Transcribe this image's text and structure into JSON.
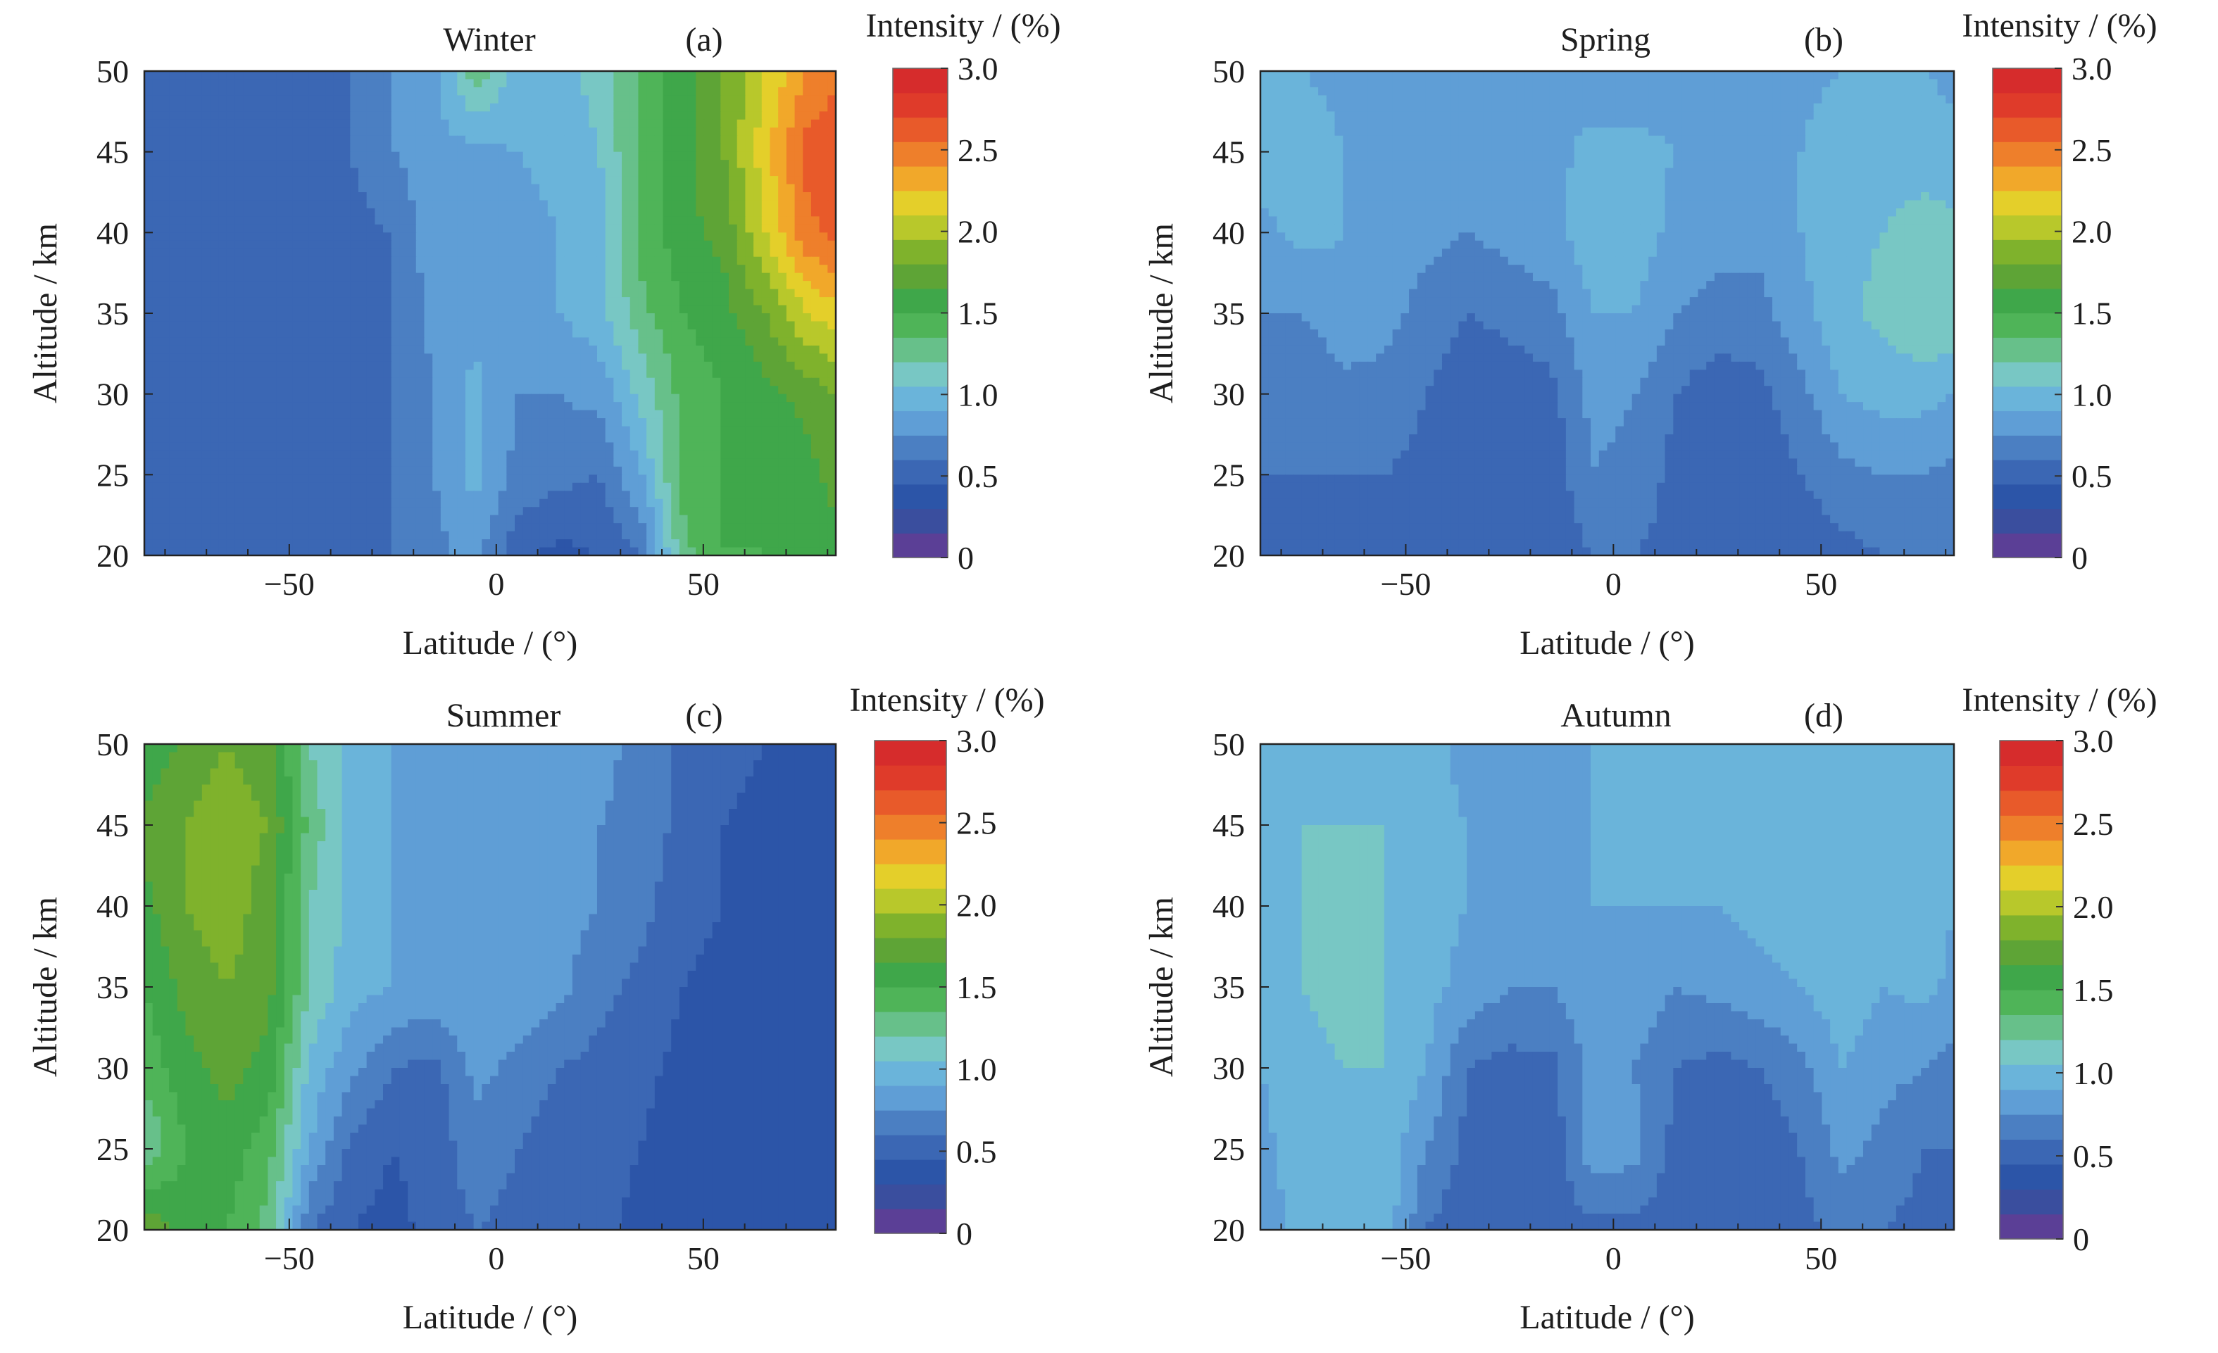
{
  "figure": {
    "panels": [
      {
        "season_title": "Winter",
        "panel_label": "(a)"
      },
      {
        "season_title": "Spring",
        "panel_label": "(b)"
      },
      {
        "season_title": "Summer",
        "panel_label": "(c)"
      },
      {
        "season_title": "Autumn",
        "panel_label": "(d)"
      }
    ],
    "x_axis_label": "Latitude / (°)",
    "y_axis_label": "Altitude / km",
    "colorbar_label": "Intensity / (%)",
    "x_tick_labels": [
      "−50",
      "0",
      "50"
    ],
    "y_tick_labels": [
      "20",
      "25",
      "30",
      "35",
      "40",
      "45",
      "50"
    ],
    "colorbar_tick_labels": [
      "0",
      "0.5",
      "1.0",
      "1.5",
      "2.0",
      "2.5",
      "3.0"
    ]
  },
  "chart_data": [
    {
      "type": "heatmap",
      "title": "Winter",
      "panel": "(a)",
      "xlabel": "Latitude / (°)",
      "ylabel": "Altitude / km",
      "colorbar_label": "Intensity / (%)",
      "xlim": [
        -85,
        82
      ],
      "ylim": [
        20,
        50
      ],
      "zlim": [
        0,
        3.0
      ],
      "x_ticks": [
        -50,
        0,
        50
      ],
      "y_ticks": [
        20,
        25,
        30,
        35,
        40,
        45,
        50
      ],
      "colorbar_ticks": [
        0,
        0.5,
        1.0,
        1.5,
        2.0,
        2.5,
        3.0
      ],
      "x": [
        -85,
        -75,
        -65,
        -55,
        -45,
        -35,
        -25,
        -15,
        -5,
        5,
        15,
        25,
        35,
        45,
        55,
        65,
        75,
        82
      ],
      "y": [
        20,
        25,
        30,
        35,
        40,
        45,
        50
      ],
      "z": [
        [
          0.55,
          0.55,
          0.55,
          0.55,
          0.55,
          0.55,
          0.6,
          0.7,
          0.8,
          0.5,
          0.4,
          0.45,
          0.6,
          1.3,
          1.5,
          1.5,
          1.6,
          1.6
        ],
        [
          0.55,
          0.55,
          0.55,
          0.55,
          0.55,
          0.55,
          0.6,
          0.75,
          0.95,
          0.7,
          0.65,
          0.6,
          0.9,
          1.4,
          1.5,
          1.5,
          1.6,
          1.7
        ],
        [
          0.55,
          0.55,
          0.55,
          0.55,
          0.55,
          0.55,
          0.6,
          0.75,
          0.95,
          0.75,
          0.75,
          0.8,
          1.1,
          1.4,
          1.5,
          1.6,
          1.7,
          1.8
        ],
        [
          0.55,
          0.55,
          0.55,
          0.55,
          0.55,
          0.55,
          0.6,
          0.8,
          0.85,
          0.8,
          0.9,
          1.0,
          1.3,
          1.5,
          1.6,
          1.8,
          2.1,
          2.2
        ],
        [
          0.55,
          0.55,
          0.55,
          0.55,
          0.55,
          0.55,
          0.6,
          0.85,
          0.8,
          0.85,
          0.9,
          1.0,
          1.4,
          1.6,
          1.7,
          2.1,
          2.5,
          2.6
        ],
        [
          0.55,
          0.55,
          0.55,
          0.55,
          0.55,
          0.6,
          0.75,
          0.85,
          0.85,
          0.9,
          0.95,
          1.05,
          1.4,
          1.6,
          1.8,
          2.2,
          2.6,
          2.7
        ],
        [
          0.55,
          0.55,
          0.55,
          0.55,
          0.55,
          0.6,
          0.75,
          0.85,
          1.3,
          1.0,
          1.0,
          1.1,
          1.4,
          1.6,
          1.8,
          2.1,
          2.4,
          2.5
        ]
      ]
    },
    {
      "type": "heatmap",
      "title": "Spring",
      "panel": "(b)",
      "xlabel": "Latitude / (°)",
      "ylabel": "Altitude / km",
      "colorbar_label": "Intensity / (%)",
      "xlim": [
        -85,
        82
      ],
      "ylim": [
        20,
        50
      ],
      "zlim": [
        0,
        3.0
      ],
      "x_ticks": [
        -50,
        0,
        50
      ],
      "y_ticks": [
        20,
        25,
        30,
        35,
        40,
        45,
        50
      ],
      "colorbar_ticks": [
        0,
        0.5,
        1.0,
        1.5,
        2.0,
        2.5,
        3.0
      ],
      "x": [
        -85,
        -75,
        -65,
        -55,
        -45,
        -35,
        -25,
        -15,
        -5,
        5,
        15,
        25,
        35,
        45,
        55,
        65,
        75,
        82
      ],
      "y": [
        20,
        25,
        30,
        35,
        40,
        45,
        50
      ],
      "z": [
        [
          0.55,
          0.6,
          0.55,
          0.55,
          0.5,
          0.5,
          0.5,
          0.5,
          0.6,
          0.6,
          0.55,
          0.5,
          0.5,
          0.5,
          0.55,
          0.6,
          0.6,
          0.6
        ],
        [
          0.6,
          0.6,
          0.6,
          0.6,
          0.55,
          0.5,
          0.5,
          0.5,
          0.75,
          0.7,
          0.55,
          0.5,
          0.5,
          0.6,
          0.7,
          0.75,
          0.75,
          0.7
        ],
        [
          0.65,
          0.6,
          0.7,
          0.7,
          0.6,
          0.5,
          0.5,
          0.55,
          0.8,
          0.75,
          0.6,
          0.5,
          0.55,
          0.7,
          0.9,
          0.95,
          0.95,
          0.9
        ],
        [
          0.75,
          0.75,
          0.85,
          0.8,
          0.7,
          0.6,
          0.65,
          0.7,
          0.9,
          0.9,
          0.75,
          0.7,
          0.7,
          0.85,
          1.0,
          1.1,
          1.2,
          1.2
        ],
        [
          0.85,
          0.95,
          0.9,
          0.75,
          0.8,
          0.75,
          0.8,
          0.85,
          1.0,
          1.0,
          0.85,
          0.8,
          0.8,
          0.9,
          1.0,
          1.05,
          1.1,
          1.1
        ],
        [
          1.0,
          1.0,
          0.9,
          0.85,
          0.85,
          0.8,
          0.85,
          0.85,
          0.95,
          0.95,
          0.9,
          0.85,
          0.85,
          0.9,
          1.0,
          1.0,
          1.0,
          0.95
        ],
        [
          0.95,
          0.9,
          0.85,
          0.85,
          0.85,
          0.85,
          0.85,
          0.85,
          0.8,
          0.8,
          0.8,
          0.85,
          0.85,
          0.85,
          0.9,
          0.9,
          0.9,
          0.85
        ]
      ]
    },
    {
      "type": "heatmap",
      "title": "Summer",
      "panel": "(c)",
      "xlabel": "Latitude / (°)",
      "ylabel": "Altitude / km",
      "colorbar_label": "Intensity / (%)",
      "xlim": [
        -85,
        82
      ],
      "ylim": [
        20,
        50
      ],
      "zlim": [
        0,
        3.0
      ],
      "x_ticks": [
        -50,
        0,
        50
      ],
      "y_ticks": [
        20,
        25,
        30,
        35,
        40,
        45,
        50
      ],
      "colorbar_ticks": [
        0,
        0.5,
        1.0,
        1.5,
        2.0,
        2.5,
        3.0
      ],
      "x": [
        -85,
        -75,
        -65,
        -55,
        -45,
        -35,
        -25,
        -15,
        -5,
        5,
        15,
        25,
        35,
        45,
        55,
        65,
        75,
        82
      ],
      "y": [
        20,
        25,
        30,
        35,
        40,
        45,
        50
      ],
      "z": [
        [
          1.8,
          1.6,
          1.5,
          1.3,
          0.6,
          0.45,
          0.4,
          0.5,
          0.6,
          0.55,
          0.5,
          0.5,
          0.4,
          0.35,
          0.35,
          0.35,
          0.35,
          0.35
        ],
        [
          1.2,
          1.5,
          1.6,
          1.4,
          0.9,
          0.55,
          0.45,
          0.5,
          0.7,
          0.6,
          0.5,
          0.5,
          0.45,
          0.35,
          0.35,
          0.35,
          0.35,
          0.35
        ],
        [
          1.4,
          1.6,
          1.7,
          1.6,
          1.0,
          0.8,
          0.6,
          0.55,
          0.8,
          0.7,
          0.6,
          0.55,
          0.5,
          0.4,
          0.35,
          0.35,
          0.35,
          0.35
        ],
        [
          1.5,
          1.7,
          1.8,
          1.7,
          1.2,
          0.95,
          0.9,
          0.85,
          0.9,
          0.9,
          0.8,
          0.65,
          0.55,
          0.45,
          0.4,
          0.35,
          0.35,
          0.35
        ],
        [
          1.6,
          1.8,
          1.9,
          1.7,
          1.2,
          1.0,
          0.9,
          0.8,
          0.85,
          0.85,
          0.8,
          0.75,
          0.65,
          0.5,
          0.45,
          0.4,
          0.35,
          0.35
        ],
        [
          1.7,
          1.8,
          1.9,
          1.8,
          1.3,
          1.0,
          0.9,
          0.8,
          0.85,
          0.85,
          0.8,
          0.75,
          0.7,
          0.55,
          0.45,
          0.4,
          0.35,
          0.35
        ],
        [
          1.5,
          1.7,
          1.8,
          1.7,
          1.2,
          1.0,
          0.9,
          0.85,
          0.85,
          0.85,
          0.8,
          0.8,
          0.7,
          0.55,
          0.5,
          0.45,
          0.4,
          0.4
        ]
      ]
    },
    {
      "type": "heatmap",
      "title": "Autumn",
      "panel": "(d)",
      "xlabel": "Latitude / (°)",
      "ylabel": "Altitude / km",
      "colorbar_label": "Intensity / (%)",
      "xlim": [
        -85,
        82
      ],
      "ylim": [
        20,
        50
      ],
      "zlim": [
        0,
        3.0
      ],
      "x_ticks": [
        -50,
        0,
        50
      ],
      "y_ticks": [
        20,
        25,
        30,
        35,
        40,
        45,
        50
      ],
      "colorbar_ticks": [
        0,
        0.5,
        1.0,
        1.5,
        2.0,
        2.5,
        3.0
      ],
      "x": [
        -85,
        -75,
        -65,
        -55,
        -45,
        -35,
        -25,
        -15,
        -5,
        5,
        15,
        25,
        35,
        45,
        55,
        65,
        75,
        82
      ],
      "y": [
        20,
        25,
        30,
        35,
        40,
        45,
        50
      ],
      "z": [
        [
          0.75,
          1.0,
          1.05,
          1.0,
          0.6,
          0.5,
          0.5,
          0.5,
          0.55,
          0.55,
          0.5,
          0.5,
          0.5,
          0.55,
          0.65,
          0.6,
          0.55,
          0.55
        ],
        [
          0.85,
          1.0,
          1.05,
          1.0,
          0.75,
          0.55,
          0.5,
          0.5,
          0.85,
          0.8,
          0.55,
          0.5,
          0.5,
          0.6,
          0.8,
          0.7,
          0.6,
          0.6
        ],
        [
          0.9,
          1.0,
          1.05,
          1.05,
          0.9,
          0.6,
          0.55,
          0.55,
          0.8,
          0.75,
          0.6,
          0.55,
          0.6,
          0.7,
          0.9,
          0.8,
          0.75,
          0.7
        ],
        [
          0.95,
          1.05,
          1.1,
          1.05,
          0.95,
          0.85,
          0.75,
          0.75,
          0.9,
          0.85,
          0.75,
          0.8,
          0.85,
          0.9,
          1.0,
          0.9,
          0.95,
          0.85
        ],
        [
          0.95,
          1.05,
          1.1,
          1.05,
          0.95,
          0.9,
          0.85,
          0.85,
          0.9,
          0.9,
          0.9,
          0.9,
          0.95,
          1.0,
          1.0,
          1.05,
          1.0,
          0.9
        ],
        [
          0.95,
          1.05,
          1.05,
          1.05,
          0.95,
          0.9,
          0.85,
          0.9,
          0.9,
          0.95,
          0.95,
          0.95,
          0.95,
          1.0,
          0.95,
          1.0,
          1.0,
          0.95
        ],
        [
          0.95,
          1.0,
          1.0,
          1.0,
          0.95,
          0.85,
          0.8,
          0.85,
          0.9,
          0.9,
          0.9,
          0.9,
          0.95,
          0.95,
          0.9,
          0.95,
          0.95,
          0.9
        ]
      ]
    }
  ],
  "colormap": [
    "#5b3f96",
    "#3a4e9e",
    "#2c55a8",
    "#3b67b4",
    "#4b7fc2",
    "#5f9ed6",
    "#6ab4da",
    "#78c7c4",
    "#67c08a",
    "#4fb458",
    "#3fa74a",
    "#5ea436",
    "#7fb22c",
    "#b8c82b",
    "#e4cf2a",
    "#f1a82a",
    "#ee7f2b",
    "#e85a2a",
    "#df3b2a",
    "#d62c2c"
  ],
  "colors": {
    "background": "#ffffff",
    "text": "#1e1e1e",
    "frame": "#222222"
  }
}
